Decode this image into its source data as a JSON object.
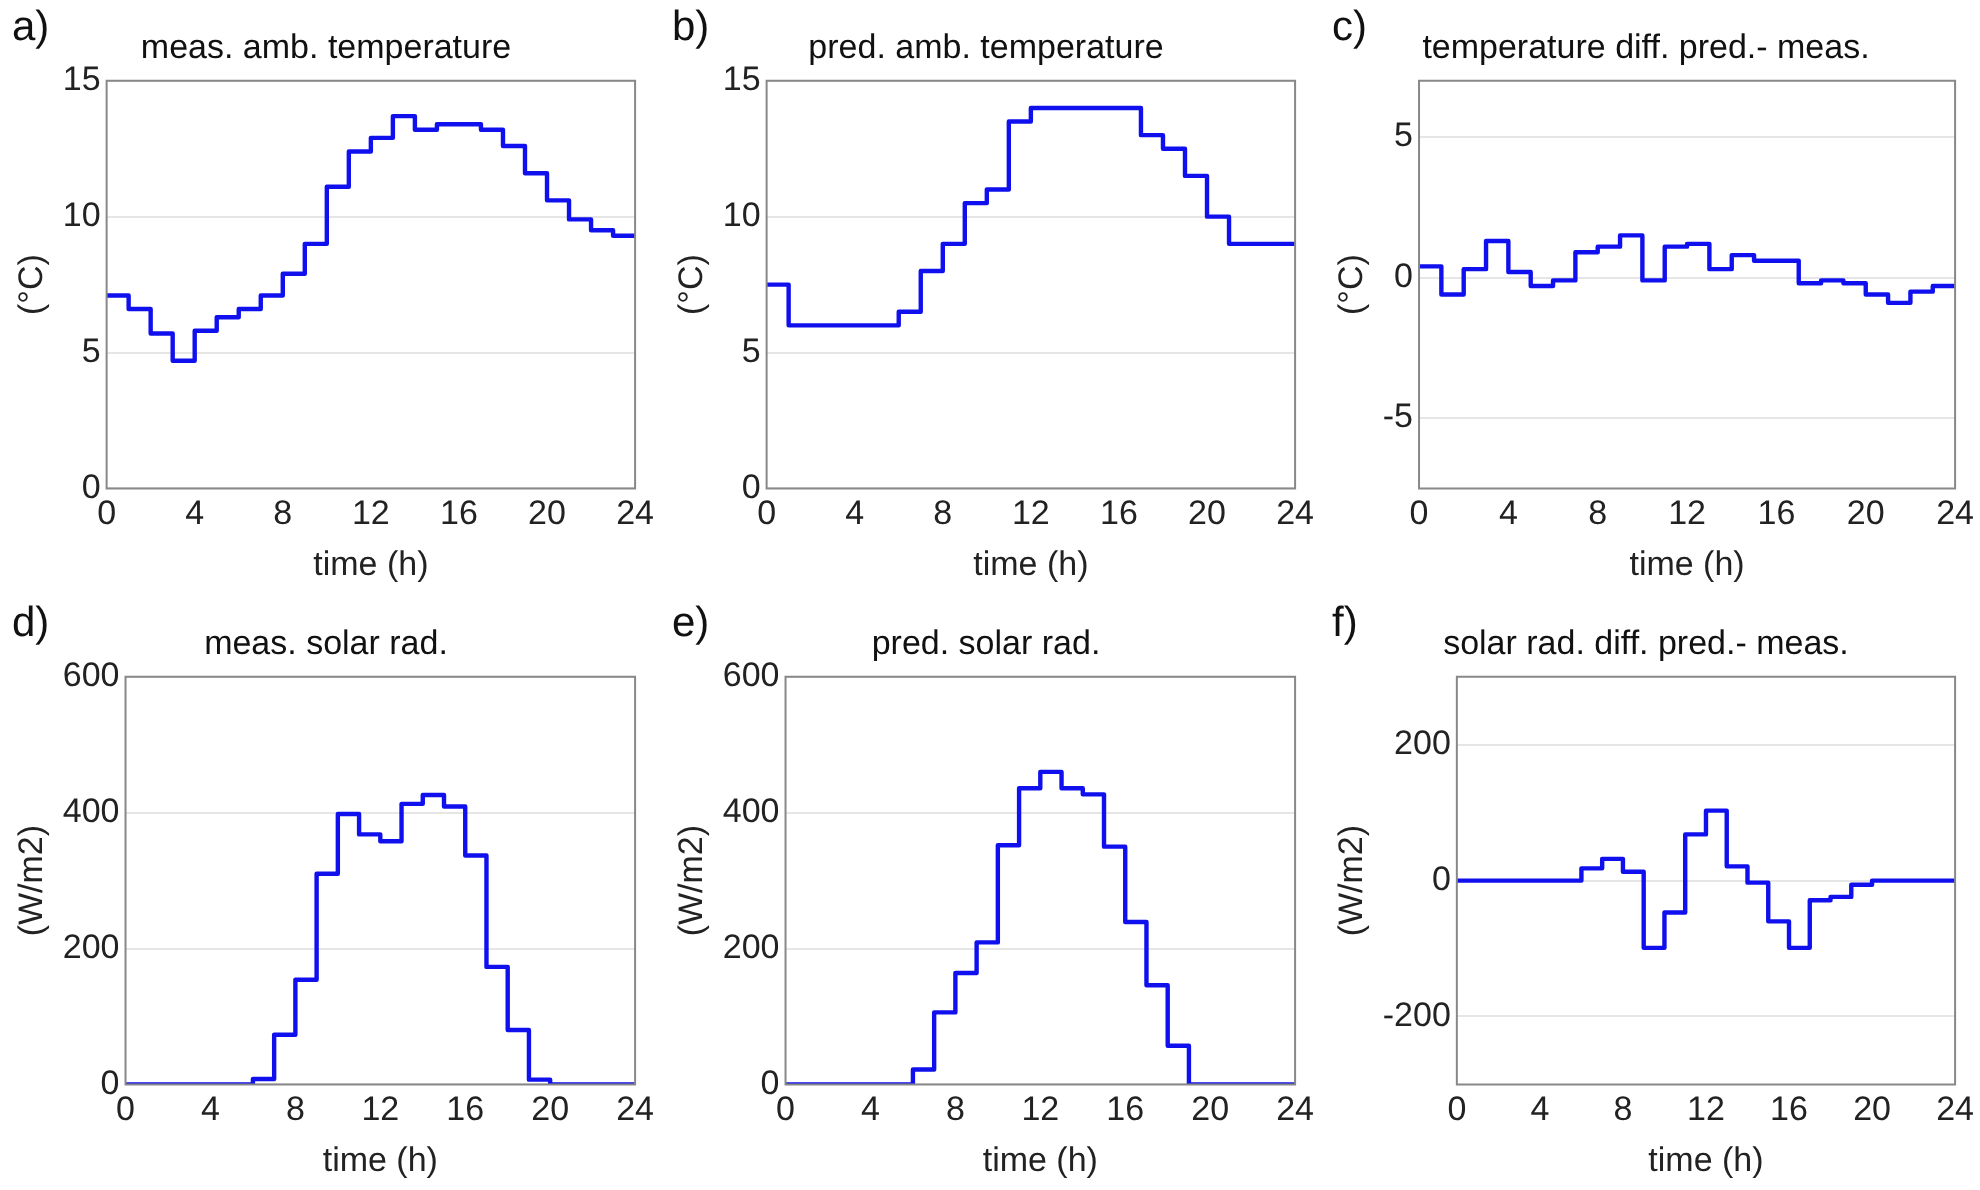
{
  "chart_data": [
    {
      "type": "step",
      "title": "meas. amb. temperature",
      "xlabel": "time (h)",
      "ylabel": "(°C)",
      "annotations": [
        "a)"
      ],
      "color": "#1010ee",
      "grid": "y",
      "x": [
        0,
        1,
        2,
        3,
        4,
        5,
        6,
        7,
        8,
        9,
        10,
        11,
        12,
        13,
        14,
        15,
        16,
        17,
        18,
        19,
        20,
        21,
        22,
        23,
        24
      ],
      "values": [
        7.1,
        6.6,
        5.7,
        4.7,
        5.8,
        6.3,
        6.6,
        7.1,
        7.9,
        9.0,
        11.1,
        12.4,
        12.9,
        13.7,
        13.2,
        13.4,
        13.4,
        13.2,
        12.6,
        11.6,
        10.6,
        9.9,
        9.5,
        9.3,
        9.3
      ],
      "xlim": [
        0,
        24
      ],
      "xticks": [
        0,
        4,
        8,
        12,
        16,
        20,
        24
      ],
      "ylim": [
        0,
        15
      ],
      "yticks": [
        0,
        5,
        10,
        15
      ]
    },
    {
      "type": "step",
      "title": "pred. amb. temperature",
      "xlabel": "time (h)",
      "ylabel": "(°C)",
      "annotations": [
        "b)"
      ],
      "color": "#1010ee",
      "grid": "y",
      "x": [
        0,
        1,
        2,
        3,
        4,
        5,
        6,
        7,
        8,
        9,
        10,
        11,
        12,
        13,
        14,
        15,
        16,
        17,
        18,
        19,
        20,
        21,
        22,
        23,
        24
      ],
      "values": [
        7.5,
        6,
        6,
        6,
        6,
        6,
        6.5,
        8,
        9,
        10.5,
        11,
        13.5,
        14,
        14,
        14,
        14,
        14,
        13,
        12.5,
        11.5,
        10,
        9,
        9,
        9,
        9
      ],
      "xlim": [
        0,
        24
      ],
      "xticks": [
        0,
        4,
        8,
        12,
        16,
        20,
        24
      ],
      "ylim": [
        0,
        15
      ],
      "yticks": [
        0,
        5,
        10,
        15
      ]
    },
    {
      "type": "step",
      "title": "temperature diff. pred.- meas.",
      "xlabel": "time (h)",
      "ylabel": "(°C)",
      "annotations": [
        "c)"
      ],
      "color": "#1010ee",
      "grid": "y",
      "x": [
        0,
        1,
        2,
        3,
        4,
        5,
        6,
        7,
        8,
        9,
        10,
        11,
        12,
        13,
        14,
        15,
        16,
        17,
        18,
        19,
        20,
        21,
        22,
        23,
        24
      ],
      "values": [
        0.4,
        -0.6,
        0.3,
        1.3,
        0.2,
        -0.3,
        -0.1,
        0.9,
        1.1,
        1.5,
        -0.1,
        1.1,
        1.2,
        0.3,
        0.8,
        0.6,
        0.6,
        -0.2,
        -0.1,
        -0.2,
        -0.6,
        -0.9,
        -0.5,
        -0.3,
        -0.3
      ],
      "xlim": [
        0,
        24
      ],
      "xticks": [
        0,
        4,
        8,
        12,
        16,
        20,
        24
      ],
      "ylim": [
        -7.5,
        7
      ],
      "yticks": [
        -5,
        0,
        5
      ]
    },
    {
      "type": "step",
      "title": "meas. solar rad.",
      "xlabel": "time (h)",
      "ylabel": "(W/m2)",
      "annotations": [
        "d)"
      ],
      "color": "#1010ee",
      "grid": "y",
      "x": [
        0,
        1,
        2,
        3,
        4,
        5,
        6,
        7,
        8,
        9,
        10,
        11,
        12,
        13,
        14,
        15,
        16,
        17,
        18,
        19,
        20,
        21,
        22,
        23,
        24
      ],
      "values": [
        0,
        0,
        0,
        0,
        0,
        0,
        8,
        73,
        154,
        310,
        398,
        368,
        358,
        413,
        426,
        409,
        337,
        173,
        80,
        7,
        0,
        0,
        0,
        0,
        0
      ],
      "xlim": [
        0,
        24
      ],
      "xticks": [
        0,
        4,
        8,
        12,
        16,
        20,
        24
      ],
      "ylim": [
        0,
        600
      ],
      "yticks": [
        0,
        200,
        400,
        600
      ]
    },
    {
      "type": "step",
      "title": "pred. solar rad.",
      "xlabel": "time (h)",
      "ylabel": "(W/m2)",
      "annotations": [
        "e)"
      ],
      "color": "#1010ee",
      "grid": "y",
      "x": [
        0,
        1,
        2,
        3,
        4,
        5,
        6,
        7,
        8,
        9,
        10,
        11,
        12,
        13,
        14,
        15,
        16,
        17,
        18,
        19,
        20,
        21,
        22,
        23,
        24
      ],
      "values": [
        0,
        0,
        0,
        0,
        0,
        0,
        22,
        106,
        164,
        209,
        352,
        436,
        460,
        436,
        427,
        350,
        239,
        146,
        57,
        0,
        0,
        0,
        0,
        0,
        0
      ],
      "xlim": [
        0,
        24
      ],
      "xticks": [
        0,
        4,
        8,
        12,
        16,
        20,
        24
      ],
      "ylim": [
        0,
        600
      ],
      "yticks": [
        0,
        200,
        400,
        600
      ]
    },
    {
      "type": "step",
      "title": "solar rad. diff. pred.- meas.",
      "xlabel": "time (h)",
      "ylabel": "(W/m2)",
      "annotations": [
        "f)"
      ],
      "color": "#1010ee",
      "grid": "y",
      "x": [
        0,
        1,
        2,
        3,
        4,
        5,
        6,
        7,
        8,
        9,
        10,
        11,
        12,
        13,
        14,
        15,
        16,
        17,
        18,
        19,
        20,
        21,
        22,
        23,
        24
      ],
      "values": [
        0,
        0,
        0,
        0,
        0,
        0,
        18,
        32,
        13,
        -99,
        -47,
        68,
        103,
        21,
        -3,
        -60,
        -99,
        -29,
        -24,
        -6,
        0,
        0,
        0,
        0,
        0
      ],
      "xlim": [
        0,
        24
      ],
      "xticks": [
        0,
        4,
        8,
        12,
        16,
        20,
        24
      ],
      "ylim": [
        -300,
        300
      ],
      "yticks": [
        -200,
        0,
        200
      ]
    }
  ]
}
